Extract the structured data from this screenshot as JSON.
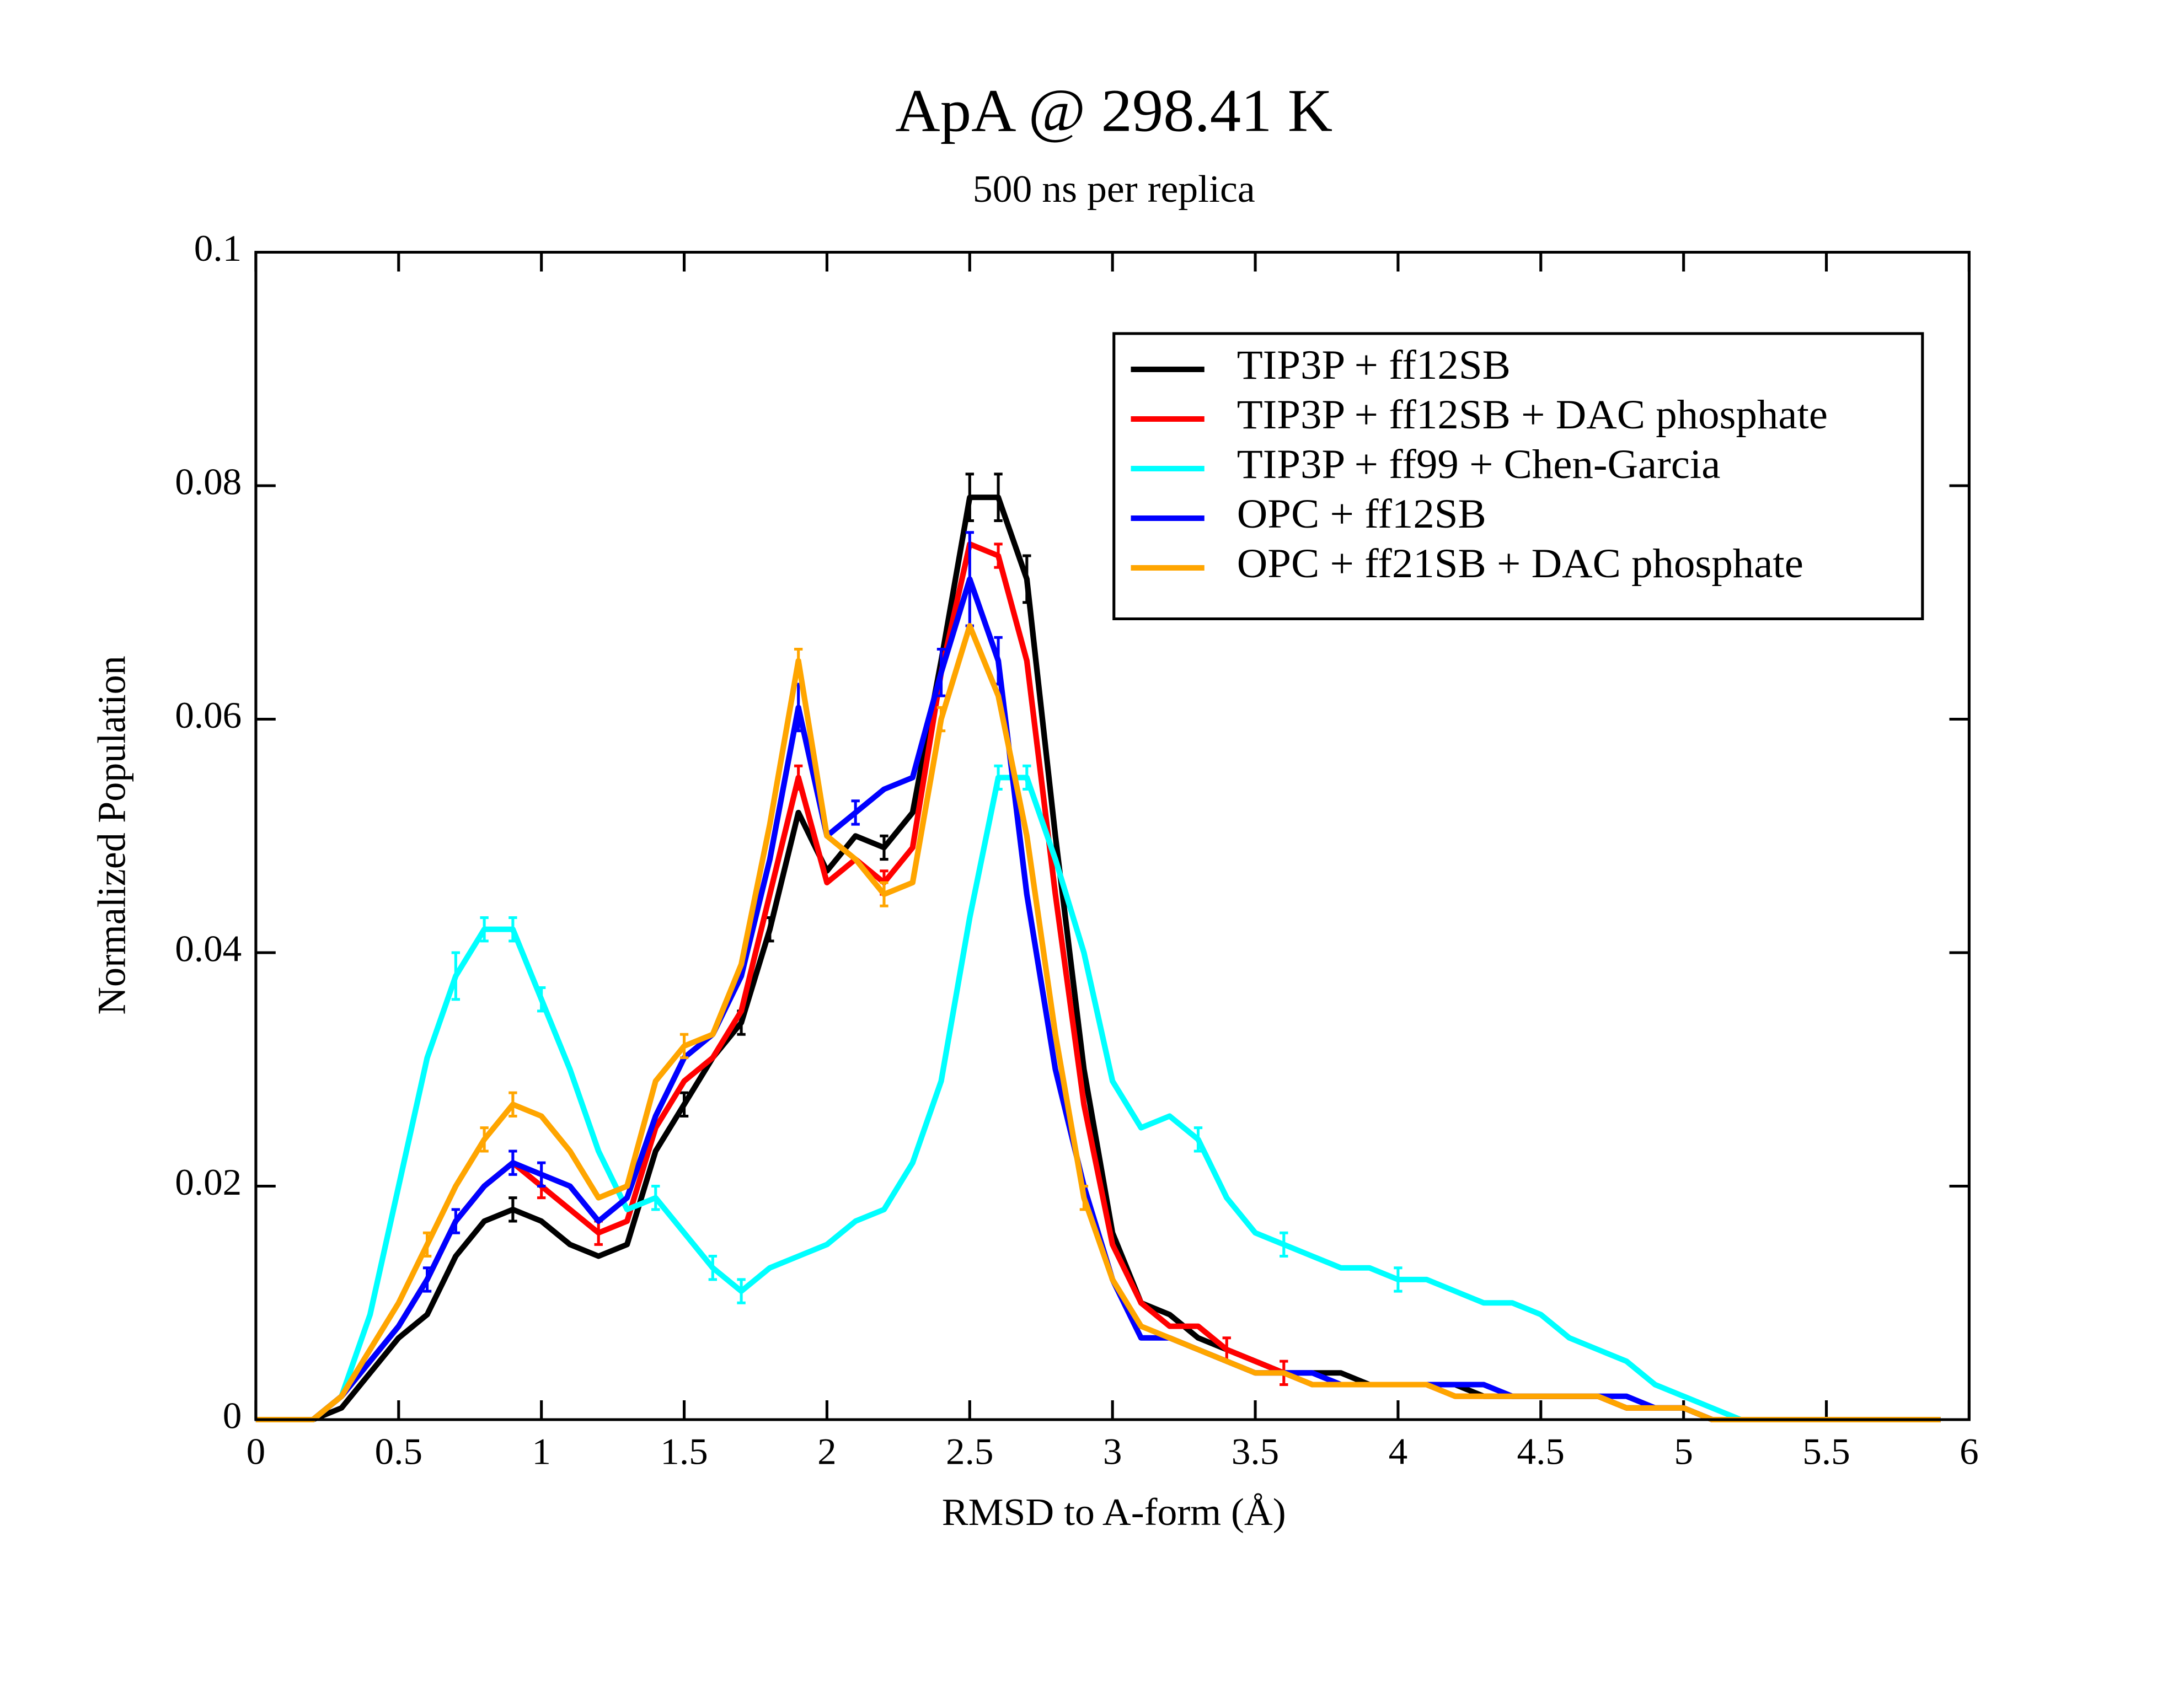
{
  "chart_data": {
    "type": "line",
    "title": "ApA @ 298.41 K",
    "subtitle": "500 ns per replica",
    "x_label": "RMSD to A-form (Å)",
    "y_label": "Normalized Population",
    "xlim": [
      0,
      6
    ],
    "ylim": [
      0,
      0.1
    ],
    "xticks": [
      0,
      0.5,
      1,
      1.5,
      2,
      2.5,
      3,
      3.5,
      4,
      4.5,
      5,
      5.5,
      6
    ],
    "yticks": [
      0,
      0.02,
      0.04,
      0.06,
      0.08,
      0.1
    ],
    "legend": "upper right",
    "x": [
      0,
      0.1,
      0.2,
      0.3,
      0.4,
      0.5,
      0.6,
      0.7,
      0.8,
      0.9,
      1.0,
      1.1,
      1.2,
      1.3,
      1.4,
      1.5,
      1.6,
      1.7,
      1.8,
      1.9,
      2.0,
      2.1,
      2.2,
      2.3,
      2.4,
      2.5,
      2.6,
      2.7,
      2.8,
      2.9,
      3.0,
      3.1,
      3.2,
      3.3,
      3.4,
      3.5,
      3.6,
      3.7,
      3.8,
      3.9,
      4.0,
      4.1,
      4.2,
      4.3,
      4.4,
      4.5,
      4.6,
      4.7,
      4.8,
      4.9,
      5.0,
      5.1,
      5.2,
      5.3,
      5.4,
      5.5,
      5.6,
      5.7,
      5.8,
      5.9
    ],
    "series": [
      {
        "name": "TIP3P + ff12SB",
        "color": "#000000",
        "values": [
          0,
          0,
          0,
          0.001,
          0.004,
          0.007,
          0.009,
          0.014,
          0.017,
          0.018,
          0.017,
          0.015,
          0.014,
          0.015,
          0.023,
          0.027,
          0.031,
          0.034,
          0.042,
          0.052,
          0.047,
          0.05,
          0.049,
          0.052,
          0.065,
          0.079,
          0.079,
          0.072,
          0.05,
          0.03,
          0.016,
          0.01,
          0.009,
          0.007,
          0.006,
          0.005,
          0.004,
          0.004,
          0.004,
          0.003,
          0.003,
          0.003,
          0.003,
          0.002,
          0.002,
          0.002,
          0.002,
          0.002,
          0.001,
          0.001,
          0.001,
          0,
          0,
          0,
          0,
          0,
          0,
          0,
          0,
          0
        ],
        "errors": [
          null,
          null,
          null,
          null,
          null,
          null,
          null,
          null,
          null,
          0.001,
          null,
          null,
          null,
          null,
          null,
          0.001,
          null,
          0.001,
          0.001,
          null,
          null,
          null,
          0.001,
          null,
          null,
          0.002,
          0.002,
          0.002,
          null,
          null,
          null,
          null,
          null,
          null,
          null,
          null,
          null,
          null,
          null,
          null,
          null,
          null,
          null,
          null,
          null,
          null,
          null,
          null,
          null,
          null,
          null,
          null,
          null,
          null,
          null,
          null,
          null,
          null,
          null,
          null
        ]
      },
      {
        "name": "TIP3P + ff12SB + DAC phosphate",
        "color": "#ff0000",
        "values": [
          0,
          0,
          0,
          0.002,
          0.005,
          0.008,
          0.012,
          0.017,
          0.02,
          0.022,
          0.02,
          0.018,
          0.016,
          0.017,
          0.025,
          0.029,
          0.031,
          0.035,
          0.045,
          0.055,
          0.046,
          0.048,
          0.046,
          0.049,
          0.064,
          0.075,
          0.074,
          0.065,
          0.045,
          0.027,
          0.015,
          0.01,
          0.008,
          0.008,
          0.006,
          0.005,
          0.004,
          0.003,
          0.003,
          0.003,
          0.003,
          0.003,
          0.002,
          0.002,
          0.002,
          0.002,
          0.002,
          0.002,
          0.001,
          0.001,
          0.001,
          0,
          0,
          0,
          0,
          0,
          0,
          0,
          0,
          0
        ],
        "errors": [
          null,
          null,
          null,
          null,
          null,
          null,
          null,
          null,
          null,
          null,
          0.001,
          null,
          0.001,
          null,
          null,
          null,
          null,
          null,
          null,
          0.001,
          null,
          null,
          0.001,
          null,
          null,
          null,
          0.001,
          null,
          null,
          null,
          null,
          null,
          null,
          null,
          0.001,
          null,
          0.001,
          null,
          null,
          null,
          null,
          null,
          null,
          null,
          null,
          null,
          null,
          null,
          null,
          null,
          null,
          null,
          null,
          null,
          null,
          null,
          null,
          null,
          null,
          null
        ]
      },
      {
        "name": "TIP3P + ff99 + Chen-Garcia",
        "color": "#00ffff",
        "values": [
          0,
          0,
          0,
          0.002,
          0.009,
          0.02,
          0.031,
          0.038,
          0.042,
          0.042,
          0.036,
          0.03,
          0.023,
          0.018,
          0.019,
          0.016,
          0.013,
          0.011,
          0.013,
          0.014,
          0.015,
          0.017,
          0.018,
          0.022,
          0.029,
          0.043,
          0.055,
          0.055,
          0.048,
          0.04,
          0.029,
          0.025,
          0.026,
          0.024,
          0.019,
          0.016,
          0.015,
          0.014,
          0.013,
          0.013,
          0.012,
          0.012,
          0.011,
          0.01,
          0.01,
          0.009,
          0.007,
          0.006,
          0.005,
          0.003,
          0.002,
          0.001,
          0,
          0,
          0,
          0,
          0,
          0,
          0,
          0
        ],
        "errors": [
          null,
          null,
          null,
          null,
          null,
          null,
          null,
          0.002,
          0.001,
          0.001,
          0.001,
          null,
          null,
          null,
          0.001,
          null,
          0.001,
          0.001,
          null,
          null,
          null,
          null,
          null,
          null,
          null,
          null,
          0.001,
          0.001,
          null,
          null,
          null,
          null,
          null,
          0.001,
          null,
          null,
          0.001,
          null,
          null,
          null,
          0.001,
          null,
          null,
          null,
          null,
          null,
          null,
          null,
          null,
          null,
          null,
          null,
          null,
          null,
          null,
          null,
          null,
          null,
          null,
          null
        ]
      },
      {
        "name": "OPC + ff12SB",
        "color": "#0000ff",
        "values": [
          0,
          0,
          0,
          0.002,
          0.005,
          0.008,
          0.012,
          0.017,
          0.02,
          0.022,
          0.021,
          0.02,
          0.017,
          0.019,
          0.026,
          0.031,
          0.033,
          0.038,
          0.048,
          0.061,
          0.05,
          0.052,
          0.054,
          0.055,
          0.064,
          0.072,
          0.065,
          0.045,
          0.03,
          0.02,
          0.012,
          0.007,
          0.007,
          0.006,
          0.005,
          0.004,
          0.004,
          0.004,
          0.003,
          0.003,
          0.003,
          0.003,
          0.003,
          0.003,
          0.002,
          0.002,
          0.002,
          0.002,
          0.002,
          0.001,
          0.001,
          0,
          0,
          0,
          0,
          0,
          0,
          0,
          0,
          0
        ],
        "errors": [
          null,
          null,
          null,
          null,
          null,
          null,
          0.001,
          0.001,
          null,
          0.001,
          0.001,
          null,
          null,
          null,
          null,
          null,
          null,
          null,
          null,
          0.002,
          null,
          0.001,
          null,
          null,
          0.002,
          0.004,
          0.002,
          null,
          null,
          null,
          null,
          null,
          null,
          null,
          null,
          null,
          null,
          null,
          null,
          null,
          null,
          null,
          null,
          null,
          null,
          null,
          null,
          null,
          null,
          null,
          null,
          null,
          null,
          null,
          null,
          null,
          null,
          null,
          null,
          null
        ]
      },
      {
        "name": "OPC + ff21SB + DAC phosphate",
        "color": "#ffa500",
        "values": [
          0,
          0,
          0,
          0.002,
          0.006,
          0.01,
          0.015,
          0.02,
          0.024,
          0.027,
          0.026,
          0.023,
          0.019,
          0.02,
          0.029,
          0.032,
          0.033,
          0.039,
          0.051,
          0.065,
          0.05,
          0.048,
          0.045,
          0.046,
          0.06,
          0.068,
          0.062,
          0.05,
          0.033,
          0.019,
          0.012,
          0.008,
          0.007,
          0.006,
          0.005,
          0.004,
          0.004,
          0.003,
          0.003,
          0.003,
          0.003,
          0.003,
          0.002,
          0.002,
          0.002,
          0.002,
          0.002,
          0.002,
          0.001,
          0.001,
          0.001,
          0,
          0,
          0,
          0,
          0,
          0,
          0,
          0,
          0
        ],
        "errors": [
          null,
          null,
          null,
          null,
          null,
          null,
          0.001,
          null,
          0.001,
          0.001,
          null,
          null,
          null,
          null,
          null,
          0.001,
          null,
          null,
          null,
          0.001,
          null,
          null,
          0.001,
          null,
          0.001,
          null,
          null,
          null,
          null,
          0.001,
          null,
          null,
          null,
          null,
          null,
          null,
          null,
          null,
          null,
          null,
          null,
          null,
          null,
          null,
          null,
          null,
          null,
          null,
          null,
          null,
          null,
          null,
          null,
          null,
          null,
          null,
          null,
          null,
          null,
          null
        ]
      }
    ]
  }
}
